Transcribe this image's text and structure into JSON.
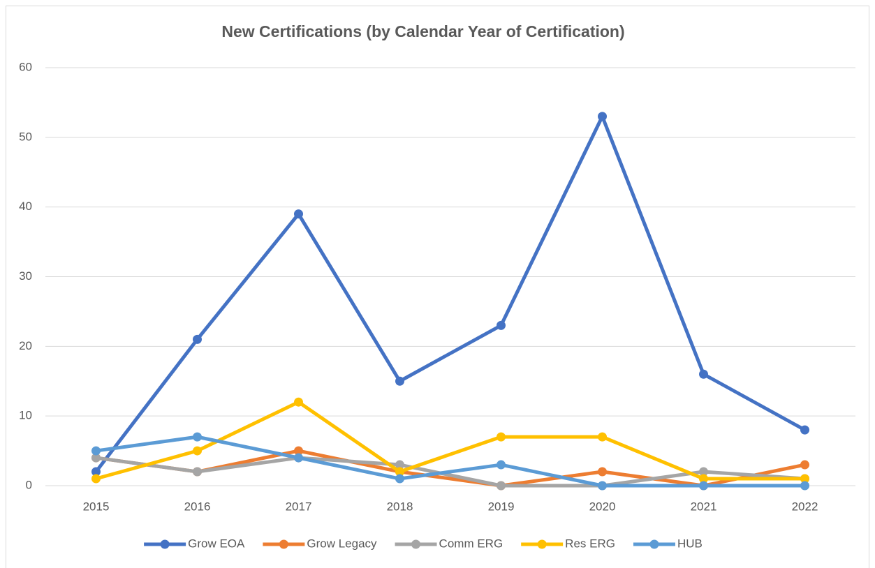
{
  "chart_data": {
    "type": "line",
    "title": "New Certifications (by Calendar Year of Certification)",
    "categories": [
      "2015",
      "2016",
      "2017",
      "2018",
      "2019",
      "2020",
      "2021",
      "2022"
    ],
    "series": [
      {
        "name": "Grow EOA",
        "color": "#4472c4",
        "values": [
          2,
          21,
          39,
          15,
          23,
          53,
          16,
          8
        ]
      },
      {
        "name": "Grow Legacy",
        "color": "#ed7d31",
        "values": [
          4,
          2,
          5,
          2,
          0,
          2,
          0,
          3
        ]
      },
      {
        "name": "Comm ERG",
        "color": "#a5a5a5",
        "values": [
          4,
          2,
          4,
          3,
          0,
          0,
          2,
          1
        ]
      },
      {
        "name": "Res ERG",
        "color": "#ffc000",
        "values": [
          1,
          5,
          12,
          2,
          7,
          7,
          1,
          1
        ]
      },
      {
        "name": "HUB",
        "color": "#5b9bd5",
        "values": [
          5,
          7,
          4,
          1,
          3,
          0,
          0,
          0
        ]
      }
    ],
    "ylim": [
      0,
      60
    ],
    "yticks": [
      0,
      10,
      20,
      30,
      40,
      50,
      60
    ],
    "grid": true,
    "legend": "bottom"
  }
}
